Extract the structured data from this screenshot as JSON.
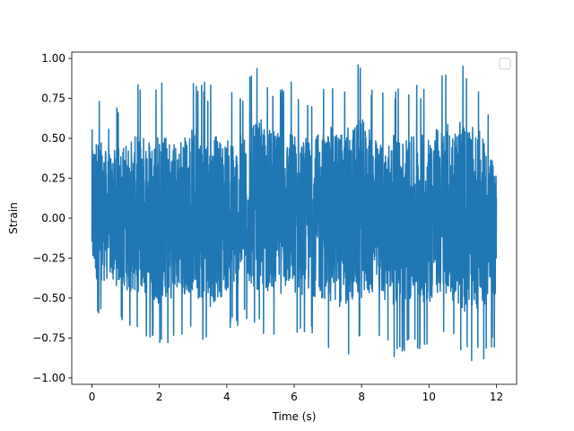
{
  "chart_data": {
    "type": "line",
    "title": "",
    "xlabel": "Time (s)",
    "ylabel": "Strain",
    "xlim": [
      -0.6,
      12.6
    ],
    "ylim": [
      -1.04,
      1.04
    ],
    "x_range": [
      0,
      12
    ],
    "xticks": [
      0,
      2,
      4,
      6,
      8,
      10,
      12
    ],
    "xtick_labels": [
      "0",
      "2",
      "4",
      "6",
      "8",
      "10",
      "12"
    ],
    "yticks": [
      -1.0,
      -0.75,
      -0.5,
      -0.25,
      0.0,
      0.25,
      0.5,
      0.75,
      1.0
    ],
    "ytick_labels": [
      "−1.00",
      "−0.75",
      "−0.50",
      "−0.25",
      "0.00",
      "0.25",
      "0.50",
      "0.75",
      "1.00"
    ],
    "grid": false,
    "legend": {
      "placement": "top-right",
      "entries": []
    },
    "series": [
      {
        "color": "#1f77b4",
        "envelope": {
          "x": [
            0,
            0.5,
            1,
            1.5,
            2,
            2.5,
            3,
            3.5,
            4,
            4.5,
            5,
            5.5,
            6,
            6.5,
            7,
            7.5,
            8,
            8.5,
            9,
            9.5,
            10,
            10.5,
            11,
            11.5,
            12
          ],
          "max": [
            0.9,
            0.65,
            0.78,
            0.86,
            0.89,
            0.79,
            0.93,
            0.85,
            0.8,
            0.85,
            1.0,
            0.86,
            0.89,
            0.79,
            0.93,
            0.9,
            1.01,
            0.77,
            0.85,
            0.82,
            0.89,
            0.97,
            0.97,
            0.88,
            0.49
          ],
          "min": [
            -0.61,
            -0.65,
            -0.73,
            -0.77,
            -0.9,
            -0.77,
            -0.77,
            -0.9,
            -0.75,
            -0.65,
            -0.74,
            -0.76,
            -0.77,
            -0.78,
            -0.85,
            -0.92,
            -0.81,
            -0.78,
            -0.89,
            -0.86,
            -0.85,
            -0.76,
            -0.95,
            -0.91,
            -0.8
          ]
        }
      }
    ]
  }
}
